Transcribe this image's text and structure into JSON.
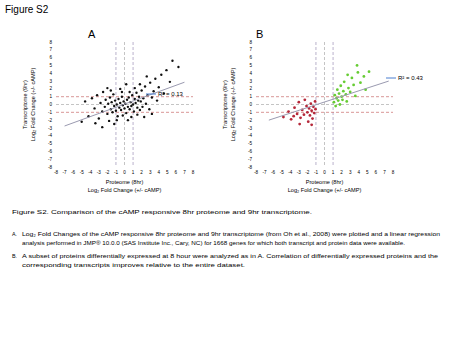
{
  "figure_title": "Figure S2",
  "chart_data": [
    {
      "type": "scatter",
      "title": "A",
      "xlabel": [
        "Proteome (8hr)",
        "Log₂ Fold Change (+/- cAMP)"
      ],
      "ylabel": [
        "Transcriptome (9hr)",
        "Log₂ Fold Change (+/- cAMP)"
      ],
      "xlim": [
        -8,
        8
      ],
      "ylim": [
        -8,
        8
      ],
      "xticks": [
        -8,
        -7,
        -6,
        -5,
        -4,
        -3,
        -2,
        -1,
        0,
        1,
        2,
        3,
        4,
        5,
        6,
        7,
        8
      ],
      "yticks": [
        -8,
        -7,
        -6,
        -5,
        -4,
        -3,
        -2,
        -1,
        0,
        1,
        2,
        3,
        4,
        5,
        6,
        7,
        8
      ],
      "grid": false,
      "reference_lines": {
        "x": [
          -1,
          0,
          1
        ],
        "y": [
          -1,
          0,
          1
        ]
      },
      "annotations": [
        "R² = 0.13"
      ],
      "series": [
        {
          "type": "scatter",
          "marker": "circle",
          "color": "#111111",
          "x": [
            -4.2,
            -3.8,
            -3.5,
            -3.2,
            -3.0,
            -2.8,
            -2.6,
            -2.5,
            -2.3,
            -2.2,
            -2.0,
            -1.9,
            -1.8,
            -1.7,
            -1.6,
            -1.5,
            -1.4,
            -1.3,
            -1.2,
            -1.1,
            -1.0,
            -0.9,
            -0.8,
            -0.7,
            -0.6,
            -0.5,
            -0.4,
            -0.3,
            -0.2,
            -0.1,
            0.0,
            0.1,
            0.2,
            0.3,
            0.4,
            0.5,
            0.6,
            0.7,
            0.8,
            0.9,
            1.0,
            1.1,
            1.2,
            1.3,
            1.4,
            1.5,
            1.6,
            1.7,
            1.8,
            1.9,
            2.0,
            2.1,
            2.2,
            2.4,
            2.5,
            2.7,
            2.9,
            3.0,
            3.2,
            3.4,
            3.6,
            3.8,
            4.0,
            4.3,
            4.6,
            4.9,
            5.3,
            5.6,
            6.3,
            2.6,
            1.8,
            -0.5,
            -1.2,
            -2.6,
            0.4,
            -3.4,
            -5.0,
            -0.3,
            0.8,
            1.2,
            -4.6,
            -2.0,
            3.2,
            0.2,
            -0.9,
            2.3,
            -1.6,
            0.6,
            -0.2,
            1.5
          ],
          "values": [
            -1.5,
            0.8,
            -0.5,
            1.2,
            -1.8,
            0.2,
            -0.9,
            1.6,
            -0.3,
            0.6,
            -1.2,
            0.1,
            -2.1,
            0.9,
            -0.6,
            0.3,
            -1.0,
            1.3,
            -0.2,
            0.5,
            -0.8,
            0.0,
            -1.5,
            0.7,
            -0.4,
            0.2,
            -0.7,
            1.0,
            -0.1,
            0.4,
            -0.5,
            0.1,
            -1.1,
            0.6,
            -0.3,
            0.9,
            -0.6,
            0.3,
            -0.2,
            1.2,
            0.0,
            -0.9,
            0.7,
            0.2,
            1.5,
            -0.4,
            0.5,
            1.0,
            -0.7,
            0.4,
            1.8,
            -0.3,
            0.8,
            2.3,
            0.1,
            1.2,
            -0.6,
            2.8,
            0.9,
            1.7,
            3.3,
            0.5,
            2.2,
            3.8,
            1.4,
            4.4,
            2.9,
            5.6,
            4.8,
            3.6,
            2.6,
            2.0,
            -2.5,
            -2.9,
            -2.0,
            -2.4,
            -2.2,
            1.6,
            -1.6,
            2.1,
            0.4,
            2.1,
            -1.2,
            2.6,
            -2.0,
            -1.6,
            1.8,
            1.6,
            -1.4,
            -1.3
          ]
        },
        {
          "type": "line",
          "line_style": "solid",
          "color": "#9a9ab0",
          "x": [
            -7,
            7
          ],
          "values": [
            -2.75,
            2.85
          ]
        }
      ]
    },
    {
      "type": "scatter",
      "title": "B",
      "xlabel": [
        "Proteome (8hr)",
        "Log₂ Fold Change (+/- cAMP)"
      ],
      "ylabel": [
        "Transcriptome (9hr)",
        "Log₂ Fold Change (+/- cAMP)"
      ],
      "xlim": [
        -8,
        8
      ],
      "ylim": [
        -8,
        8
      ],
      "xticks": [
        -8,
        -7,
        -6,
        -5,
        -4,
        -3,
        -2,
        -1,
        0,
        1,
        2,
        3,
        4,
        5,
        6,
        7,
        8
      ],
      "yticks": [
        -8,
        -7,
        -6,
        -5,
        -4,
        -3,
        -2,
        -1,
        0,
        1,
        2,
        3,
        4,
        5,
        6,
        7,
        8
      ],
      "grid": false,
      "reference_lines": {
        "x": [
          -1,
          0,
          1
        ],
        "y": [
          -1,
          0,
          1
        ]
      },
      "annotations": [
        "R² = 0.43"
      ],
      "series": [
        {
          "type": "scatter",
          "marker": "circle",
          "color": "#b5283a",
          "x": [
            -4.8,
            -4.2,
            -3.9,
            -3.5,
            -3.2,
            -3.0,
            -2.8,
            -2.6,
            -2.4,
            -2.3,
            -2.1,
            -2.0,
            -1.9,
            -1.8,
            -1.7,
            -1.6,
            -1.5,
            -1.4,
            -1.3,
            -1.2,
            -1.1,
            -1.05,
            -2.9,
            -3.6,
            -1.5
          ],
          "values": [
            -1.6,
            -0.9,
            -1.9,
            -0.4,
            -1.2,
            0.3,
            -1.7,
            -0.7,
            -1.3,
            0.6,
            -0.2,
            -1.0,
            -2.2,
            -0.5,
            -1.4,
            0.1,
            -0.8,
            -1.8,
            -0.3,
            -1.1,
            0.4,
            -0.6,
            -2.5,
            -1.5,
            -2.6
          ]
        },
        {
          "type": "scatter",
          "marker": "circle",
          "color": "#66cc33",
          "x": [
            1.1,
            1.2,
            1.3,
            1.4,
            1.5,
            1.6,
            1.7,
            1.8,
            1.9,
            2.0,
            2.1,
            2.2,
            2.3,
            2.5,
            2.6,
            2.8,
            3.0,
            3.2,
            3.4,
            3.6,
            3.9,
            4.2,
            4.6,
            4.8,
            5.2,
            3.8,
            2.7
          ],
          "values": [
            0.3,
            1.2,
            -0.2,
            0.8,
            1.9,
            0.5,
            1.4,
            0.0,
            2.4,
            1.0,
            0.6,
            1.7,
            2.9,
            1.3,
            0.4,
            2.1,
            1.6,
            3.4,
            2.5,
            1.1,
            4.1,
            2.8,
            3.6,
            1.9,
            4.2,
            5.0,
            3.8
          ]
        },
        {
          "type": "line",
          "line_style": "solid",
          "color": "#9a9ab0",
          "x": [
            -6.5,
            7.5
          ],
          "values": [
            -2.0,
            3.0
          ]
        }
      ]
    }
  ],
  "caption_title": "Figure S2.  Comparison of the cAMP responsive 8hr proteome and 9hr transcriptome.",
  "caption": [
    {
      "label": "A.",
      "lines": [
        "Log₂ Fold Changes of the cAMP responsive 8hr proteome and 9hr transcriptome (from Oh et al., 2008) were  plotted and a linear regression",
        "analysis performed in JMP® 10.0.0 (SAS Institute Inc., Cary, NC) for 1668 genes for which both transcript and protein data were available."
      ]
    },
    {
      "label": "B.",
      "lines": [
        "A subset of proteins differentially expressed at 8 hour were analyzed as in  A.  Correlation of differentially expressed proteins and the",
        "corresponding transcripts improves relative to the entire dataset."
      ]
    }
  ]
}
